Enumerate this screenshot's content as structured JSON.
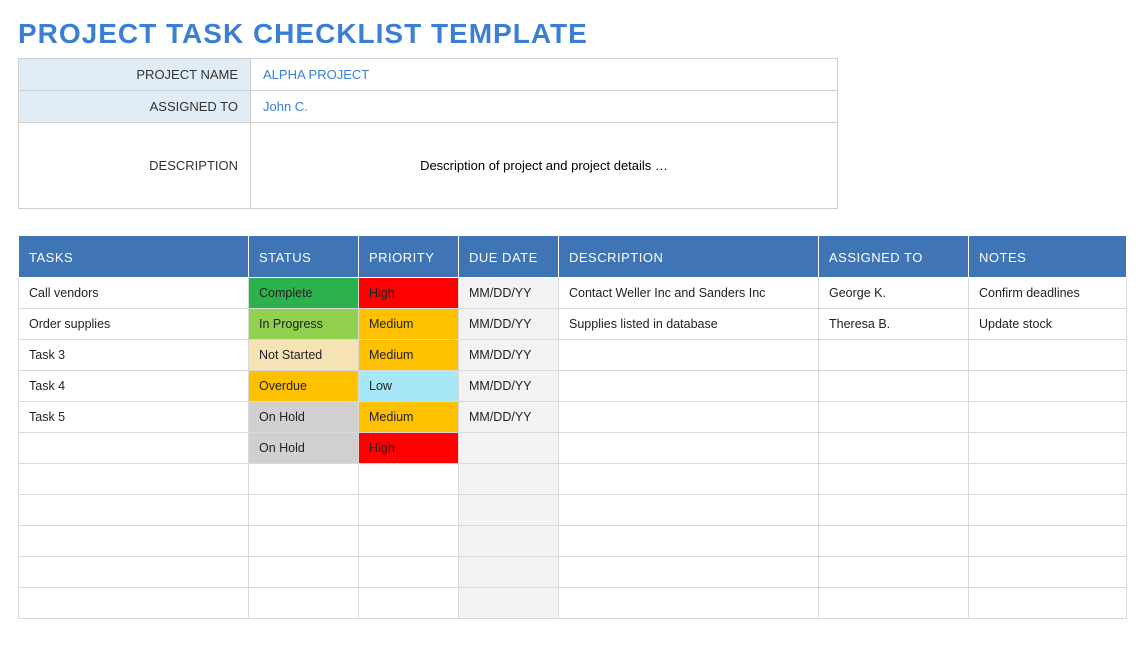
{
  "title": "PROJECT TASK CHECKLIST TEMPLATE",
  "title_color": "#3a7fd5",
  "info": {
    "project_name_label": "PROJECT NAME",
    "project_name_value": "ALPHA PROJECT",
    "assigned_to_label": "ASSIGNED TO",
    "assigned_to_value": "John C.",
    "description_label": "DESCRIPTION",
    "description_value": "Description of project and project details …",
    "label_bg": "#e0ecf6",
    "value_color": "#3a7fd5"
  },
  "table": {
    "header_bg": "#3f74b5",
    "header_text": "#ffffff",
    "columns": [
      "TASKS",
      "STATUS",
      "PRIORITY",
      "DUE DATE",
      "DESCRIPTION",
      "ASSIGNED TO",
      "NOTES"
    ],
    "due_cell_bg": "#f3f3f3",
    "status_colors": {
      "Complete": "#2bb24c",
      "In Progress": "#92d050",
      "Not Started": "#f5e3b5",
      "Overdue": "#ffc000",
      "On Hold": "#d0d0d0"
    },
    "priority_colors": {
      "High": "#ff0000",
      "Medium": "#ffc000",
      "Low": "#a7e8f8"
    },
    "rows": [
      {
        "task": "Call vendors",
        "status": "Complete",
        "priority": "High",
        "due": "MM/DD/YY",
        "desc": "Contact Weller Inc and Sanders Inc",
        "assigned": "George K.",
        "notes": "Confirm deadlines"
      },
      {
        "task": "Order supplies",
        "status": "In Progress",
        "priority": "Medium",
        "due": "MM/DD/YY",
        "desc": "Supplies listed in database",
        "assigned": "Theresa B.",
        "notes": "Update stock"
      },
      {
        "task": "Task 3",
        "status": "Not Started",
        "priority": "Medium",
        "due": "MM/DD/YY",
        "desc": "",
        "assigned": "",
        "notes": ""
      },
      {
        "task": "Task 4",
        "status": "Overdue",
        "priority": "Low",
        "due": "MM/DD/YY",
        "desc": "",
        "assigned": "",
        "notes": ""
      },
      {
        "task": "Task 5",
        "status": "On Hold",
        "priority": "Medium",
        "due": "MM/DD/YY",
        "desc": "",
        "assigned": "",
        "notes": ""
      },
      {
        "task": "",
        "status": "On Hold",
        "priority": "High",
        "due": "",
        "desc": "",
        "assigned": "",
        "notes": ""
      },
      {
        "task": "",
        "status": "",
        "priority": "",
        "due": "",
        "desc": "",
        "assigned": "",
        "notes": ""
      },
      {
        "task": "",
        "status": "",
        "priority": "",
        "due": "",
        "desc": "",
        "assigned": "",
        "notes": ""
      },
      {
        "task": "",
        "status": "",
        "priority": "",
        "due": "",
        "desc": "",
        "assigned": "",
        "notes": ""
      },
      {
        "task": "",
        "status": "",
        "priority": "",
        "due": "",
        "desc": "",
        "assigned": "",
        "notes": ""
      },
      {
        "task": "",
        "status": "",
        "priority": "",
        "due": "",
        "desc": "",
        "assigned": "",
        "notes": ""
      }
    ]
  }
}
